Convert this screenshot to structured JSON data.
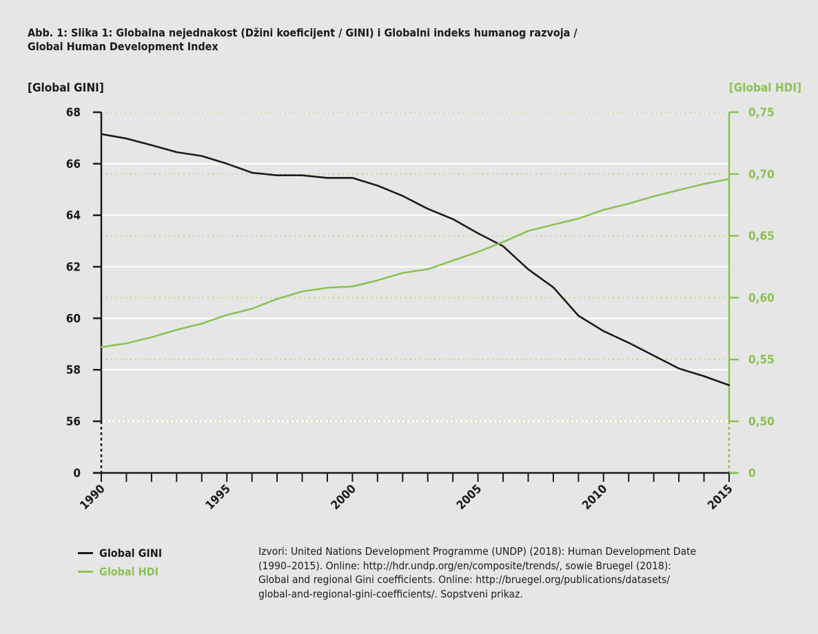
{
  "title": {
    "line1": "Abb. 1: Slika 1: Globalna nejednakost (Džini koeficijent / GINI) i Globalni indeks humanog razvoja /",
    "line2": "Global Human Development Index"
  },
  "legend": {
    "gini": "Global GINI",
    "hdi": "Global HDI"
  },
  "source_lines": [
    "Izvori: United Nations Development Programme (UNDP) (2018): Human Development Date",
    "(1990–2015). Online: http://hdr.undp.org/en/composite/trends/, sowie Bruegel (2018):",
    "Global and regional Gini coefficients. Online: http://bruegel.org/publications/datasets/",
    "global-and-regional-gini-coefficients/. Sopstveni prikaz."
  ],
  "colors": {
    "gini": "#1a1a1a",
    "hdi": "#8cc152",
    "background": "#e6e6e6",
    "grid": "#ffffff"
  },
  "chart_data": {
    "type": "line",
    "y_left_label": "[Global GINI]",
    "y_right_label": "[Global HDI]",
    "x_ticks": [
      "1990",
      "1995",
      "2000",
      "2005",
      "2010",
      "2015"
    ],
    "x_range": [
      1990,
      2015
    ],
    "y_left_ticks": [
      "68",
      "66",
      "64",
      "62",
      "60",
      "58",
      "56",
      "0"
    ],
    "y_left_range": [
      56,
      68
    ],
    "y_left_axis_break": true,
    "y_right_ticks": [
      "0,75",
      "0,70",
      "0,65",
      "0,60",
      "0,55",
      "0,50",
      "0"
    ],
    "y_right_range": [
      0.5,
      0.75
    ],
    "y_right_axis_break": true,
    "grid": true,
    "legend_position": "bottom-left",
    "x": [
      1990,
      1991,
      1992,
      1993,
      1994,
      1995,
      1996,
      1997,
      1998,
      1999,
      2000,
      2001,
      2002,
      2003,
      2004,
      2005,
      2006,
      2007,
      2008,
      2009,
      2010,
      2011,
      2012,
      2013,
      2014,
      2015
    ],
    "series": [
      {
        "name": "Global GINI",
        "axis": "left",
        "values": [
          67.15,
          66.98,
          66.72,
          66.45,
          66.3,
          66.0,
          65.65,
          65.55,
          65.55,
          65.45,
          65.45,
          65.15,
          64.75,
          64.25,
          63.85,
          63.3,
          62.8,
          61.9,
          61.2,
          60.1,
          59.5,
          59.05,
          58.55,
          58.05,
          57.75,
          57.4
        ]
      },
      {
        "name": "Global HDI",
        "axis": "right",
        "values": [
          0.56,
          0.563,
          0.568,
          0.574,
          0.579,
          0.586,
          0.591,
          0.599,
          0.605,
          0.608,
          0.609,
          0.614,
          0.62,
          0.623,
          0.63,
          0.637,
          0.645,
          0.654,
          0.659,
          0.664,
          0.671,
          0.676,
          0.682,
          0.687,
          0.692,
          0.696
        ]
      }
    ]
  }
}
